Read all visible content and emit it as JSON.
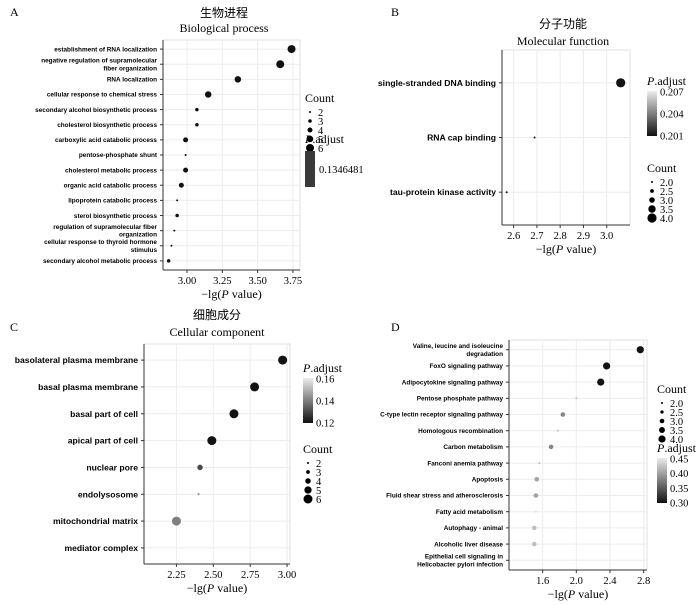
{
  "chart_data": [
    {
      "type": "scatter",
      "panel": "A",
      "title": "生物进程",
      "subtitle": "Biological process",
      "xlabel": "−lg(P value)",
      "xlim": [
        2.83,
        3.8
      ],
      "xticks": [
        "3.00",
        "3.25",
        "3.50",
        "3.75"
      ],
      "categories": [
        "establishment of RNA localization",
        "negative regulation of supramolecular fiber organization",
        "RNA localization",
        "cellular response to chemical stress",
        "secondary alcohol biosynthetic process",
        "cholesterol biosynthetic process",
        "carboxylic acid catabolic process",
        "pentose-phosphate shunt",
        "cholesterol metabolic process",
        "organic acid catabolic process",
        "lipoprotein catabolic process",
        "sterol biosynthetic process",
        "regulation of supramolecular fiber organization",
        "cellular response to thyroid hormone stimulus",
        "secondary alcohol metabolic process"
      ],
      "category_lines": [
        [
          "establishment of RNA localization"
        ],
        [
          "negative regulation of supramolecular",
          "fiber organization"
        ],
        [
          "RNA localization"
        ],
        [
          "cellular response to chemical stress"
        ],
        [
          "secondary alcohol biosynthetic process"
        ],
        [
          "cholesterol biosynthetic process"
        ],
        [
          "carboxylic acid catabolic process"
        ],
        [
          "pentose-phosphate shunt"
        ],
        [
          "cholesterol metabolic process"
        ],
        [
          "organic acid catabolic process"
        ],
        [
          "lipoprotein catabolic process"
        ],
        [
          "sterol biosynthetic process"
        ],
        [
          "regulation of supramolecular fiber",
          "organization"
        ],
        [
          "cellular response to thyroid hormone",
          "stimulus"
        ],
        [
          "secondary alcohol metabolic process"
        ]
      ],
      "x": [
        3.74,
        3.66,
        3.36,
        3.15,
        3.07,
        3.07,
        2.99,
        2.99,
        2.99,
        2.96,
        2.93,
        2.93,
        2.91,
        2.89,
        2.87
      ],
      "count": [
        6,
        6,
        5,
        5,
        3,
        3,
        4,
        2,
        4,
        4,
        2,
        3,
        2,
        2,
        3
      ],
      "legend_count_title": "Count",
      "legend_count_labels": [
        "2",
        "3",
        "4",
        "5",
        "6"
      ],
      "legend_count_values": [
        2,
        3,
        4,
        5,
        6
      ],
      "legend_padj_title": "P.adjust",
      "legend_padj_labels": [
        "0.1346481"
      ],
      "color_scale": {
        "low": "#111111",
        "high": "#ececec"
      }
    },
    {
      "type": "scatter",
      "panel": "B",
      "title": "分子功能",
      "subtitle": "Molecular function",
      "xlabel": "−lg(P value)",
      "xlim": [
        2.55,
        3.1
      ],
      "xticks": [
        "2.6",
        "2.7",
        "2.8",
        "2.9",
        "3.0"
      ],
      "categories": [
        "single-stranded DNA binding",
        "RNA cap binding",
        "tau-protein kinase activity"
      ],
      "x": [
        3.06,
        2.69,
        2.57
      ],
      "count": [
        4,
        2,
        2
      ],
      "padj": [
        0.201,
        0.201,
        0.201
      ],
      "legend_count_title": "Count",
      "legend_count_labels": [
        "2.0",
        "2.5",
        "3.0",
        "3.5",
        "4.0"
      ],
      "legend_count_values": [
        2.0,
        2.5,
        3.0,
        3.5,
        4.0
      ],
      "legend_padj_title": "P.adjust",
      "legend_padj_labels": [
        "0.207",
        "0.204",
        "0.201"
      ],
      "legend_padj_values": [
        0.207,
        0.204,
        0.201
      ],
      "color_scale": {
        "low": "#111111",
        "high": "#ececec"
      }
    },
    {
      "type": "scatter",
      "panel": "C",
      "title": "细胞成分",
      "subtitle": "Cellular component",
      "xlabel": "−lg(P value)",
      "xlim": [
        2.03,
        3.02
      ],
      "xticks": [
        "2.25",
        "2.50",
        "2.75",
        "3.00"
      ],
      "categories": [
        "basolateral plasma membrane",
        "basal plasma membrane",
        "basal part of cell",
        "apical part of cell",
        "nuclear pore",
        "endolysosome",
        "mitochondrial matrix",
        "mediator complex"
      ],
      "x": [
        2.97,
        2.78,
        2.64,
        2.49,
        2.41,
        2.4,
        2.25,
        2.08
      ],
      "count": [
        6,
        6,
        6,
        6,
        4,
        2,
        6,
        2
      ],
      "padj": [
        0.12,
        0.12,
        0.12,
        0.12,
        0.13,
        0.14,
        0.14,
        0.17
      ],
      "legend_count_title": "Count",
      "legend_count_labels": [
        "2",
        "3",
        "4",
        "5",
        "6"
      ],
      "legend_count_values": [
        2,
        3,
        4,
        5,
        6
      ],
      "legend_padj_title": "P.adjust",
      "legend_padj_labels": [
        "0.16",
        "0.14",
        "0.12"
      ],
      "legend_padj_values": [
        0.16,
        0.14,
        0.12
      ],
      "color_scale": {
        "low": "#111111",
        "high": "#ececec"
      }
    },
    {
      "type": "scatter",
      "panel": "D",
      "title": "",
      "subtitle": "",
      "xlabel": "−lg(P value)",
      "xlim": [
        1.2,
        2.84
      ],
      "xticks": [
        "1.6",
        "2.0",
        "2.4",
        "2.8"
      ],
      "categories": [
        "Valine, leucine and isoleucine degradation",
        "FoxO signaling pathway",
        "Adipocytokine signaling pathway",
        "Pentose phosphate pathway",
        "C-type lectin receptor signaling pathway",
        "Homologous recombination",
        "Carbon metabolism",
        "Fanconi anemia pathway",
        "Apoptosis",
        "Fluid shear stress and atherosclerosis",
        "Fatty acid metabolism",
        "Autophagy - animal",
        "Alcoholic liver disease",
        "Epithelial cell signaling in Helicobacter pylori infection"
      ],
      "category_lines": [
        [
          "Valine, leucine and isoleucine",
          "degradation"
        ],
        [
          "FoxO signaling pathway"
        ],
        [
          "Adipocytokine signaling pathway"
        ],
        [
          "Pentose phosphate pathway"
        ],
        [
          "C-type lectin receptor signaling pathway"
        ],
        [
          "Homologous recombination"
        ],
        [
          "Carbon metabolism"
        ],
        [
          "Fanconi anemia pathway"
        ],
        [
          "Apoptosis"
        ],
        [
          "Fluid shear stress and atherosclerosis"
        ],
        [
          "Fatty acid metabolism"
        ],
        [
          "Autophagy - animal"
        ],
        [
          "Alcoholic liver disease"
        ],
        [
          "Epithelial cell signaling in",
          "Helicobacter pylori infection"
        ]
      ],
      "x": [
        2.76,
        2.36,
        2.29,
        2.0,
        1.84,
        1.78,
        1.7,
        1.56,
        1.53,
        1.52,
        1.52,
        1.5,
        1.5,
        1.3
      ],
      "count": [
        4,
        4,
        4,
        2,
        3,
        2,
        3,
        2,
        3,
        3,
        2,
        3,
        3,
        2
      ],
      "padj": [
        0.3,
        0.3,
        0.3,
        0.42,
        0.38,
        0.42,
        0.38,
        0.42,
        0.4,
        0.4,
        0.44,
        0.42,
        0.42,
        0.46
      ],
      "legend_count_title": "Count",
      "legend_count_labels": [
        "2.0",
        "2.5",
        "3.0",
        "3.5",
        "4.0"
      ],
      "legend_count_values": [
        2.0,
        2.5,
        3.0,
        3.5,
        4.0
      ],
      "legend_padj_title": "P.adjust",
      "legend_padj_labels": [
        "0.45",
        "0.40",
        "0.35",
        "0.30"
      ],
      "legend_padj_values": [
        0.45,
        0.4,
        0.35,
        0.3
      ],
      "color_scale": {
        "low": "#111111",
        "high": "#ececec"
      }
    }
  ]
}
